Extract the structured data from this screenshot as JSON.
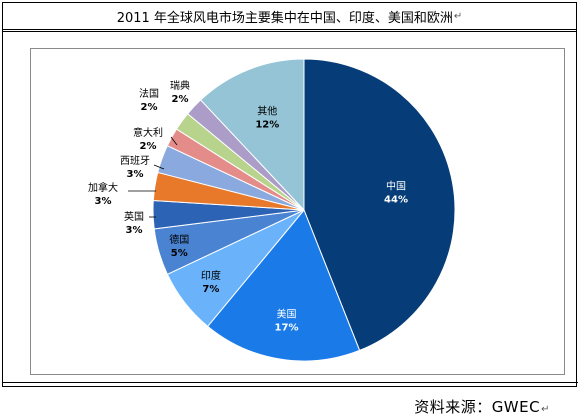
{
  "title": "2011 年全球风电市场主要集中在中国、印度、美国和欧洲",
  "source_label": "资料来源：GWEC",
  "paragraph_mark": "↵",
  "chart_data": {
    "type": "pie",
    "title": "",
    "start_angle": "12 o'clock",
    "direction": "clockwise",
    "slices": [
      {
        "name": "中国",
        "value": 44,
        "label": "44%",
        "color": "#063d78"
      },
      {
        "name": "美国",
        "value": 17,
        "label": "17%",
        "color": "#1a7ae8"
      },
      {
        "name": "印度",
        "value": 7,
        "label": "7%",
        "color": "#6ab3fb"
      },
      {
        "name": "德国",
        "value": 5,
        "label": "5%",
        "color": "#4a83d2"
      },
      {
        "name": "英国",
        "value": 3,
        "label": "3%",
        "color": "#2d63b4"
      },
      {
        "name": "加拿大",
        "value": 3,
        "label": "3%",
        "color": "#e8792a"
      },
      {
        "name": "西班牙",
        "value": 3,
        "label": "3%",
        "color": "#8aa9df"
      },
      {
        "name": "意大利",
        "value": 2,
        "label": "2%",
        "color": "#e38c8a"
      },
      {
        "name": "法国",
        "value": 2,
        "label": "2%",
        "color": "#b8d48c"
      },
      {
        "name": "瑞典",
        "value": 2,
        "label": "2%",
        "color": "#ab9dc8"
      },
      {
        "name": "其他",
        "value": 12,
        "label": "12%",
        "color": "#94c4d6"
      }
    ]
  }
}
